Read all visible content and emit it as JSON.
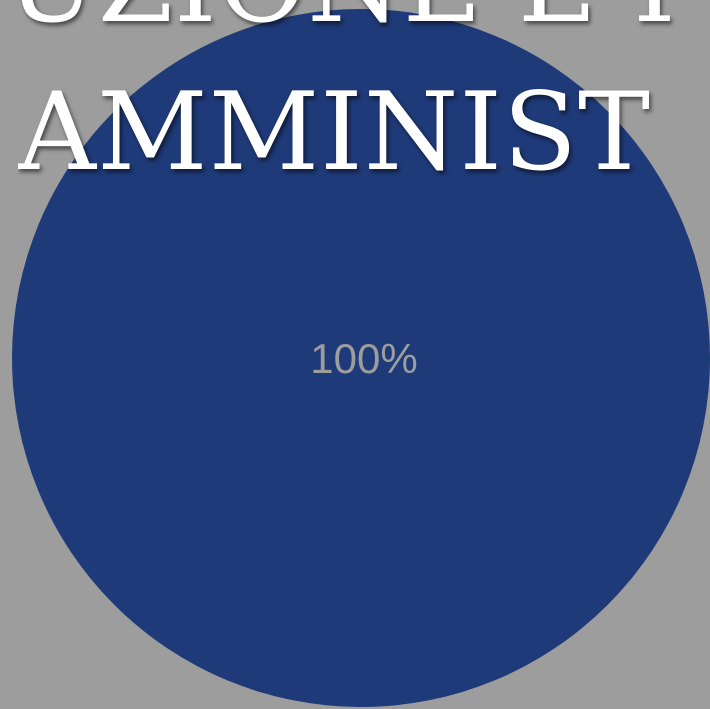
{
  "title": {
    "line1": "UZIONE E I",
    "line2": "AMMINIST"
  },
  "chart_data": {
    "type": "pie",
    "values": [
      100
    ],
    "data_labels": [
      "100%"
    ],
    "colors": [
      "#1f3a78"
    ]
  },
  "colors": {
    "background": "#9d9d9d",
    "slice": "#1f3a78",
    "title_text": "#ffffff",
    "data_label": "#9d9d9d"
  }
}
